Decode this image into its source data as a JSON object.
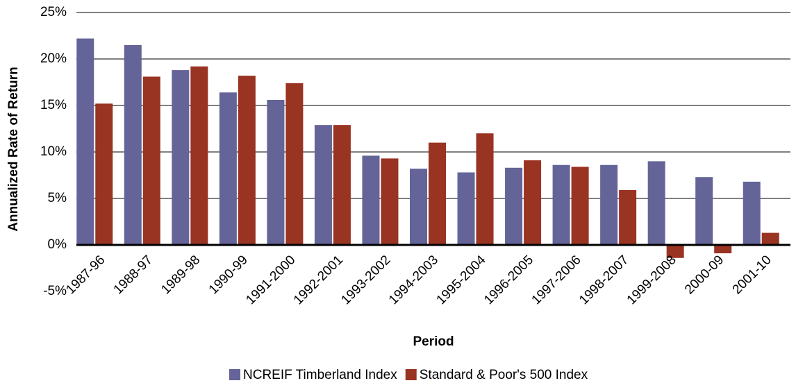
{
  "chart_data": {
    "type": "bar",
    "x_label": "Period",
    "y_label": "Annualized Rate of Return",
    "categories": [
      "1987-96",
      "1988-97",
      "1989-98",
      "1990-99",
      "1991-2000",
      "1992-2001",
      "1993-2002",
      "1994-2003",
      "1995-2004",
      "1996-2005",
      "1997-2006",
      "1998-2007",
      "1999-2008",
      "2000-09",
      "2001-10"
    ],
    "series": [
      {
        "name": "NCREIF Timberland Index",
        "color": "#646499",
        "values": [
          22.2,
          21.5,
          18.8,
          16.4,
          15.6,
          12.9,
          9.6,
          8.2,
          7.8,
          8.3,
          8.6,
          8.6,
          9.0,
          7.3,
          6.8
        ]
      },
      {
        "name": "Standard & Poor's 500 Index",
        "color": "#993322",
        "values": [
          15.2,
          18.1,
          19.2,
          18.2,
          17.4,
          12.9,
          9.3,
          11.0,
          12.0,
          9.1,
          8.4,
          5.9,
          -1.4,
          -0.9,
          1.3
        ]
      }
    ],
    "ylim": [
      -5,
      25
    ],
    "yticks": [
      {
        "value": -5,
        "label": "-5%"
      },
      {
        "value": 0,
        "label": "0%"
      },
      {
        "value": 5,
        "label": "5%"
      },
      {
        "value": 10,
        "label": "10%"
      },
      {
        "value": 15,
        "label": "15%"
      },
      {
        "value": 20,
        "label": "20%"
      },
      {
        "value": 25,
        "label": "25%"
      }
    ],
    "grid": true,
    "legend": "bottom"
  }
}
